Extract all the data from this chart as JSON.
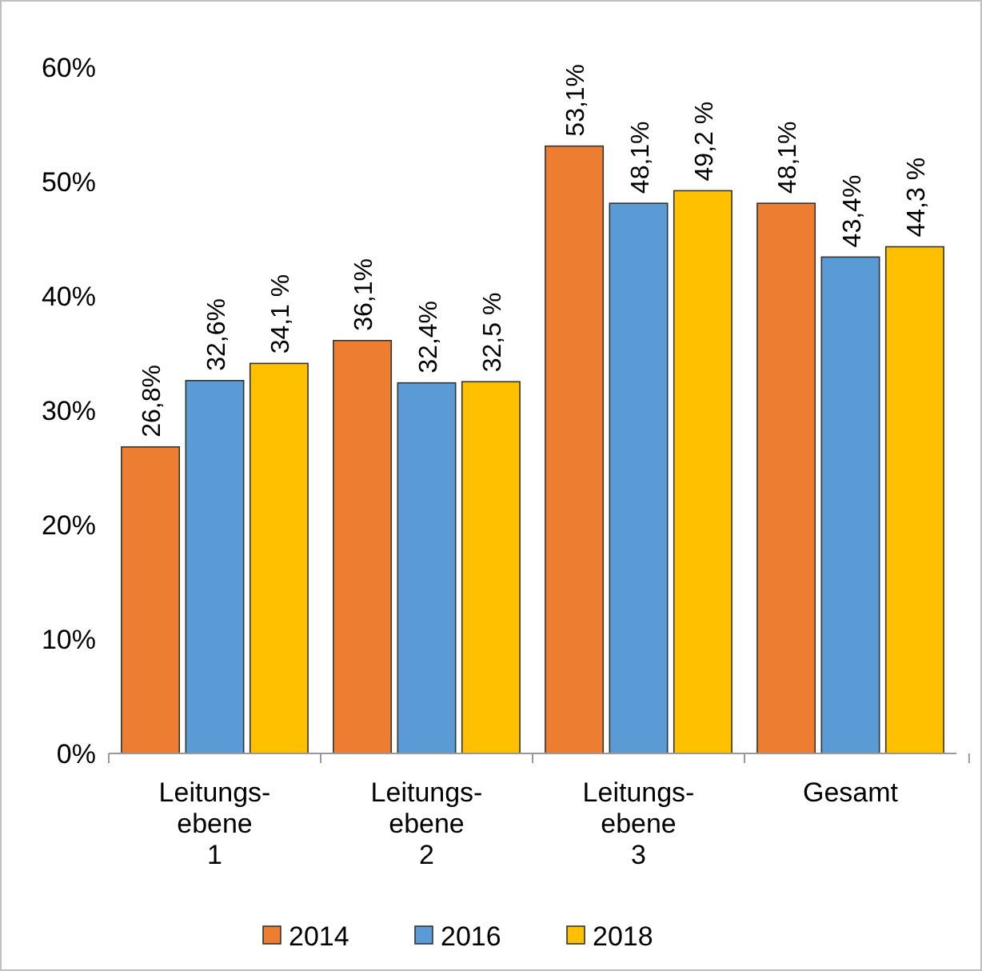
{
  "chart_data": {
    "type": "bar",
    "categories": [
      "Leitungs-\nebene\n1",
      "Leitungs-\nebene\n2",
      "Leitungs-\nebene\n3",
      "Gesamt"
    ],
    "series": [
      {
        "name": "2014",
        "color": "#ed7d31",
        "values": [
          26.8,
          36.1,
          53.1,
          48.1
        ],
        "value_labels": [
          "26,8%",
          "36,1%",
          "53,1%",
          "48,1%"
        ]
      },
      {
        "name": "2016",
        "color": "#5b9bd5",
        "values": [
          32.6,
          32.4,
          48.1,
          43.4
        ],
        "value_labels": [
          "32,6%",
          "32,4%",
          "48,1%",
          "43,4%"
        ]
      },
      {
        "name": "2018",
        "color": "#ffc000",
        "values": [
          34.1,
          32.5,
          49.2,
          44.3
        ],
        "value_labels": [
          "34,1 %",
          "32,5 %",
          "49,2 %",
          "44,3 %"
        ]
      }
    ],
    "ylim": [
      0,
      60
    ],
    "yticks": [
      {
        "value": 0,
        "label": "0%"
      },
      {
        "value": 10,
        "label": "10%"
      },
      {
        "value": 20,
        "label": "20%"
      },
      {
        "value": 30,
        "label": "30%"
      },
      {
        "value": 40,
        "label": "40%"
      },
      {
        "value": 50,
        "label": "50%"
      },
      {
        "value": 60,
        "label": "60%"
      }
    ],
    "legend": "bottom"
  }
}
